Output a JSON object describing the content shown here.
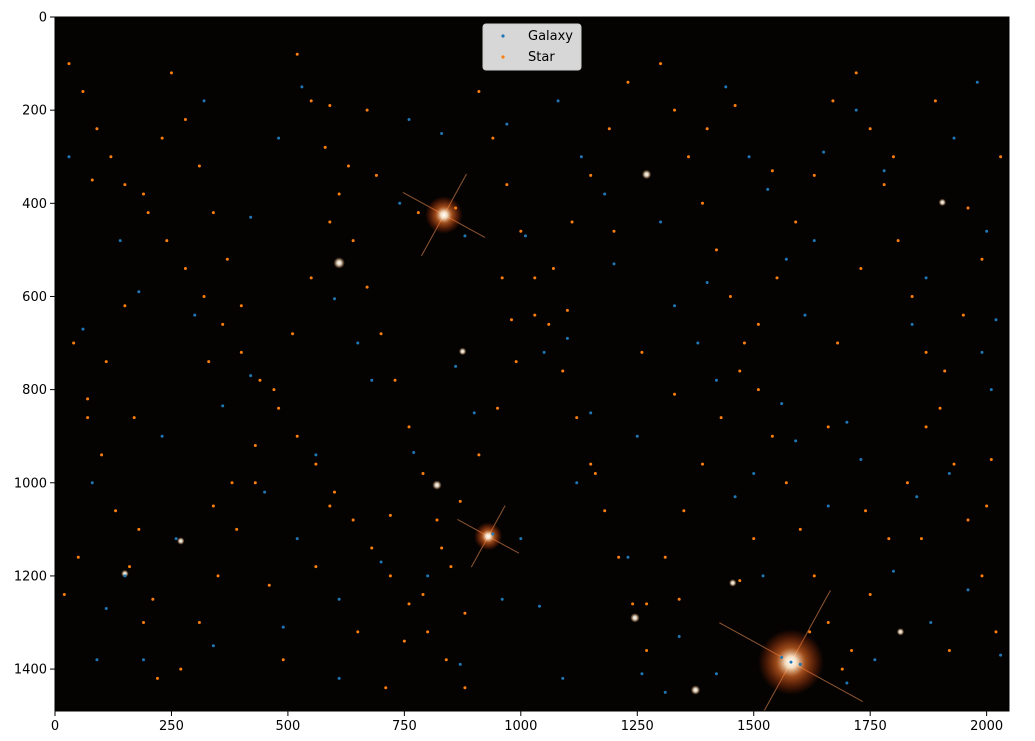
{
  "chart_data": {
    "type": "scatter",
    "background": "astronomical-image-dark-starfield",
    "x_ticks": [
      0,
      250,
      500,
      750,
      1000,
      1250,
      1500,
      1750,
      2000
    ],
    "y_ticks": [
      0,
      200,
      400,
      600,
      800,
      1000,
      1200,
      1400
    ],
    "x_tick_labels": [
      "0",
      "250",
      "500",
      "750",
      "1000",
      "1250",
      "1500",
      "1750",
      "2000"
    ],
    "y_tick_labels": [
      "0",
      "200",
      "400",
      "600",
      "800",
      "1000",
      "1200",
      "1400"
    ],
    "xlim": [
      0,
      2048
    ],
    "ylim": [
      1490,
      0
    ],
    "y_inverted": true,
    "grid": false,
    "legend_position": "upper-center",
    "legend": [
      "Galaxy",
      "Star"
    ],
    "colors": {
      "Galaxy": "#1f77b4",
      "Star": "#ff7f0e"
    },
    "bright_stars": [
      {
        "x": 835,
        "y": 425,
        "r": 40
      },
      {
        "x": 930,
        "y": 1115,
        "r": 30
      },
      {
        "x": 1580,
        "y": 1385,
        "r": 70
      },
      {
        "x": 610,
        "y": 528,
        "r": 12
      },
      {
        "x": 1270,
        "y": 338,
        "r": 10
      },
      {
        "x": 820,
        "y": 1005,
        "r": 10
      },
      {
        "x": 1245,
        "y": 1290,
        "r": 10
      },
      {
        "x": 1375,
        "y": 1445,
        "r": 10
      },
      {
        "x": 1455,
        "y": 1215,
        "r": 8
      },
      {
        "x": 270,
        "y": 1125,
        "r": 8
      },
      {
        "x": 150,
        "y": 1195,
        "r": 8
      },
      {
        "x": 1905,
        "y": 398,
        "r": 8
      },
      {
        "x": 1815,
        "y": 1320,
        "r": 8
      },
      {
        "x": 875,
        "y": 718,
        "r": 8
      }
    ],
    "series": [
      {
        "name": "Galaxy",
        "points": [
          [
            600,
            605
          ],
          [
            940,
            1110
          ],
          [
            1580,
            1385
          ],
          [
            1560,
            1375
          ],
          [
            1600,
            1390
          ],
          [
            770,
            935
          ],
          [
            1040,
            1265
          ],
          [
            110,
            1270
          ],
          [
            150,
            1200
          ],
          [
            190,
            1380
          ],
          [
            230,
            900
          ],
          [
            300,
            640
          ],
          [
            360,
            835
          ],
          [
            420,
            770
          ],
          [
            450,
            1020
          ],
          [
            490,
            1310
          ],
          [
            520,
            1120
          ],
          [
            560,
            940
          ],
          [
            610,
            1250
          ],
          [
            650,
            700
          ],
          [
            700,
            1170
          ],
          [
            740,
            400
          ],
          [
            800,
            1200
          ],
          [
            860,
            750
          ],
          [
            880,
            470
          ],
          [
            900,
            850
          ],
          [
            960,
            1250
          ],
          [
            1000,
            1120
          ],
          [
            1050,
            720
          ],
          [
            1100,
            690
          ],
          [
            1120,
            1000
          ],
          [
            1150,
            850
          ],
          [
            1200,
            530
          ],
          [
            1230,
            1160
          ],
          [
            1260,
            1410
          ],
          [
            1300,
            440
          ],
          [
            1340,
            1330
          ],
          [
            1380,
            700
          ],
          [
            1420,
            780
          ],
          [
            1460,
            1030
          ],
          [
            1500,
            980
          ],
          [
            1520,
            1200
          ],
          [
            1560,
            830
          ],
          [
            1590,
            910
          ],
          [
            1630,
            480
          ],
          [
            1660,
            1050
          ],
          [
            1700,
            870
          ],
          [
            1730,
            950
          ],
          [
            1760,
            1380
          ],
          [
            1800,
            1190
          ],
          [
            1850,
            1030
          ],
          [
            1880,
            1300
          ],
          [
            1920,
            980
          ],
          [
            1960,
            1230
          ],
          [
            1990,
            720
          ],
          [
            2010,
            800
          ],
          [
            2030,
            1370
          ],
          [
            60,
            670
          ],
          [
            80,
            1000
          ],
          [
            30,
            300
          ],
          [
            140,
            480
          ],
          [
            180,
            590
          ],
          [
            260,
            1120
          ],
          [
            320,
            180
          ],
          [
            420,
            430
          ],
          [
            480,
            260
          ],
          [
            530,
            150
          ],
          [
            680,
            780
          ],
          [
            760,
            220
          ],
          [
            830,
            250
          ],
          [
            970,
            230
          ],
          [
            1010,
            470
          ],
          [
            1080,
            180
          ],
          [
            1130,
            300
          ],
          [
            1180,
            380
          ],
          [
            1250,
            900
          ],
          [
            1330,
            620
          ],
          [
            1400,
            570
          ],
          [
            1440,
            150
          ],
          [
            1490,
            300
          ],
          [
            1530,
            370
          ],
          [
            1570,
            520
          ],
          [
            1610,
            640
          ],
          [
            1650,
            290
          ],
          [
            1720,
            200
          ],
          [
            1780,
            330
          ],
          [
            1840,
            660
          ],
          [
            1870,
            560
          ],
          [
            1930,
            260
          ],
          [
            1980,
            140
          ],
          [
            2000,
            460
          ],
          [
            2020,
            650
          ],
          [
            90,
            1380
          ],
          [
            340,
            1350
          ],
          [
            610,
            1420
          ],
          [
            870,
            1390
          ],
          [
            1090,
            1420
          ],
          [
            1310,
            1450
          ],
          [
            1420,
            1410
          ],
          [
            1700,
            1430
          ]
        ]
      },
      {
        "name": "Star",
        "points": [
          [
            30,
            100
          ],
          [
            60,
            160
          ],
          [
            90,
            240
          ],
          [
            120,
            300
          ],
          [
            150,
            360
          ],
          [
            200,
            420
          ],
          [
            240,
            480
          ],
          [
            280,
            540
          ],
          [
            320,
            600
          ],
          [
            360,
            660
          ],
          [
            400,
            720
          ],
          [
            440,
            780
          ],
          [
            480,
            840
          ],
          [
            520,
            900
          ],
          [
            560,
            960
          ],
          [
            600,
            1020
          ],
          [
            640,
            1080
          ],
          [
            680,
            1140
          ],
          [
            720,
            1200
          ],
          [
            760,
            1260
          ],
          [
            800,
            1320
          ],
          [
            840,
            1380
          ],
          [
            880,
            1440
          ],
          [
            40,
            700
          ],
          [
            70,
            820
          ],
          [
            100,
            940
          ],
          [
            130,
            1060
          ],
          [
            160,
            1180
          ],
          [
            190,
            1300
          ],
          [
            220,
            1420
          ],
          [
            250,
            120
          ],
          [
            280,
            220
          ],
          [
            310,
            320
          ],
          [
            340,
            420
          ],
          [
            370,
            520
          ],
          [
            400,
            620
          ],
          [
            430,
            920
          ],
          [
            460,
            1220
          ],
          [
            490,
            1380
          ],
          [
            520,
            80
          ],
          [
            550,
            180
          ],
          [
            580,
            280
          ],
          [
            610,
            380
          ],
          [
            640,
            480
          ],
          [
            670,
            580
          ],
          [
            700,
            680
          ],
          [
            730,
            780
          ],
          [
            760,
            880
          ],
          [
            790,
            980
          ],
          [
            820,
            1080
          ],
          [
            850,
            1180
          ],
          [
            880,
            1280
          ],
          [
            910,
            160
          ],
          [
            940,
            260
          ],
          [
            970,
            360
          ],
          [
            1000,
            460
          ],
          [
            1030,
            560
          ],
          [
            1060,
            660
          ],
          [
            1090,
            760
          ],
          [
            1120,
            860
          ],
          [
            1150,
            960
          ],
          [
            1180,
            1060
          ],
          [
            1210,
            1160
          ],
          [
            1240,
            1260
          ],
          [
            1270,
            1360
          ],
          [
            1300,
            100
          ],
          [
            1330,
            200
          ],
          [
            1360,
            300
          ],
          [
            1390,
            400
          ],
          [
            1420,
            500
          ],
          [
            1450,
            600
          ],
          [
            1480,
            700
          ],
          [
            1510,
            800
          ],
          [
            1540,
            900
          ],
          [
            1570,
            1000
          ],
          [
            1600,
            1100
          ],
          [
            1630,
            1200
          ],
          [
            1660,
            1300
          ],
          [
            1690,
            1400
          ],
          [
            1720,
            120
          ],
          [
            1750,
            240
          ],
          [
            1780,
            360
          ],
          [
            1810,
            480
          ],
          [
            1840,
            600
          ],
          [
            1870,
            720
          ],
          [
            1900,
            840
          ],
          [
            1930,
            960
          ],
          [
            1960,
            1080
          ],
          [
            1990,
            1200
          ],
          [
            2020,
            1320
          ],
          [
            2030,
            300
          ],
          [
            1990,
            520
          ],
          [
            1950,
            640
          ],
          [
            1910,
            760
          ],
          [
            1870,
            880
          ],
          [
            1830,
            1000
          ],
          [
            1790,
            1120
          ],
          [
            1750,
            1240
          ],
          [
            1710,
            1360
          ],
          [
            1670,
            180
          ],
          [
            1630,
            340
          ],
          [
            1590,
            440
          ],
          [
            1550,
            560
          ],
          [
            1510,
            660
          ],
          [
            1470,
            760
          ],
          [
            1430,
            860
          ],
          [
            1390,
            960
          ],
          [
            1350,
            1060
          ],
          [
            1310,
            1160
          ],
          [
            1270,
            1260
          ],
          [
            1230,
            140
          ],
          [
            1190,
            240
          ],
          [
            1150,
            340
          ],
          [
            1110,
            440
          ],
          [
            1070,
            540
          ],
          [
            1030,
            640
          ],
          [
            990,
            740
          ],
          [
            950,
            840
          ],
          [
            910,
            940
          ],
          [
            870,
            1040
          ],
          [
            830,
            1140
          ],
          [
            790,
            1240
          ],
          [
            750,
            1340
          ],
          [
            710,
            1440
          ],
          [
            670,
            200
          ],
          [
            630,
            320
          ],
          [
            590,
            440
          ],
          [
            550,
            560
          ],
          [
            510,
            680
          ],
          [
            470,
            800
          ],
          [
            430,
            1000
          ],
          [
            390,
            1100
          ],
          [
            350,
            1200
          ],
          [
            310,
            1300
          ],
          [
            270,
            1400
          ],
          [
            230,
            260
          ],
          [
            190,
            380
          ],
          [
            150,
            620
          ],
          [
            110,
            740
          ],
          [
            70,
            860
          ],
          [
            50,
            1160
          ],
          [
            20,
            1240
          ],
          [
            180,
            1100
          ],
          [
            210,
            1250
          ],
          [
            340,
            1050
          ],
          [
            380,
            1000
          ],
          [
            560,
            1180
          ],
          [
            590,
            1050
          ],
          [
            650,
            1320
          ],
          [
            720,
            1070
          ],
          [
            860,
            410
          ],
          [
            960,
            560
          ],
          [
            1100,
            630
          ],
          [
            1160,
            980
          ],
          [
            1260,
            720
          ],
          [
            1340,
            1250
          ],
          [
            1400,
            240
          ],
          [
            1460,
            190
          ],
          [
            1500,
            1120
          ],
          [
            1620,
            1320
          ],
          [
            1680,
            700
          ],
          [
            1740,
            1060
          ],
          [
            1800,
            300
          ],
          [
            1860,
            1120
          ],
          [
            1920,
            1360
          ],
          [
            1960,
            410
          ],
          [
            2010,
            950
          ],
          [
            80,
            350
          ],
          [
            170,
            860
          ],
          [
            330,
            740
          ],
          [
            590,
            190
          ],
          [
            690,
            340
          ],
          [
            780,
            420
          ],
          [
            980,
            650
          ],
          [
            1200,
            460
          ],
          [
            1330,
            810
          ],
          [
            1470,
            1210
          ],
          [
            1540,
            330
          ],
          [
            1660,
            880
          ],
          [
            1730,
            540
          ],
          [
            1890,
            180
          ],
          [
            2000,
            1050
          ]
        ]
      }
    ]
  }
}
